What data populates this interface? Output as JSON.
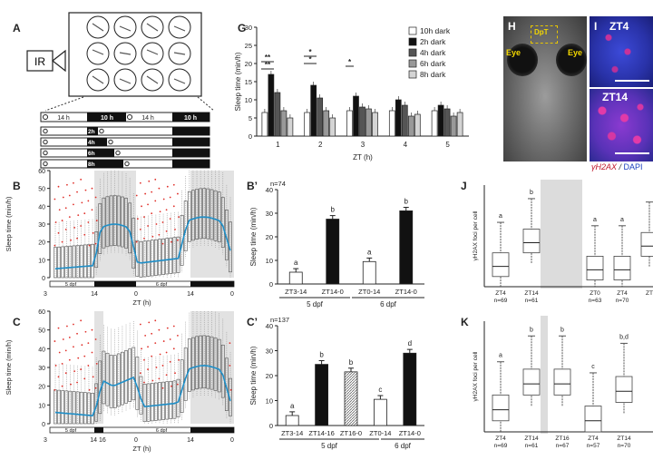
{
  "panel_letters": {
    "A": "A",
    "B": "B",
    "C": "C",
    "G": "G",
    "Bp": "B’",
    "Cp": "C’",
    "H": "H",
    "I": "I",
    "J": "J",
    "K": "K"
  },
  "A": {
    "ir_label": "IR",
    "schedule": {
      "top": [
        "14 h",
        "10 h",
        "14 h",
        "10 h"
      ],
      "rows": [
        "2h",
        "4h",
        "6h",
        "8h"
      ]
    }
  },
  "B": {
    "ylabel": "Sleep time (min/h)",
    "xlabel": "ZT (h)",
    "yticks": [
      "0",
      "10",
      "20",
      "30",
      "40",
      "50",
      "60"
    ],
    "xticks": [
      "3",
      "14",
      "0",
      "14",
      "0"
    ],
    "days": [
      "5 dpf",
      "6 dpf"
    ]
  },
  "C": {
    "ylabel": "Sleep time (min/h)",
    "xlabel": "ZT (h)",
    "yticks": [
      "0",
      "10",
      "20",
      "30",
      "40",
      "50",
      "60"
    ],
    "xticks": [
      "3",
      "14 16",
      "0",
      "14",
      "0"
    ],
    "days": [
      "5 dpf",
      "6 dpf"
    ]
  },
  "H": {
    "labels": [
      "Eye",
      "Eye",
      "DpT"
    ]
  },
  "I": {
    "labels": [
      "ZT4",
      "ZT14"
    ],
    "stain_red": "γH2AX",
    "stain_sep": " / ",
    "stain_blue": "DAPI"
  },
  "J": {
    "ylabel": "γH2AX foci per cell"
  },
  "K": {
    "ylabel": "γH2AX foci per cell"
  },
  "chart_data": [
    {
      "panel": "G",
      "type": "bar",
      "ylabel": "Sleep time (min/h)",
      "xlabel": "ZT (h)",
      "ylim": [
        0,
        30
      ],
      "yticks": [
        0,
        5,
        10,
        15,
        20,
        25,
        30
      ],
      "categories": [
        "1",
        "2",
        "3",
        "4",
        "5"
      ],
      "series": [
        {
          "name": "10h dark",
          "color": "#ffffff",
          "values": [
            6.5,
            6.5,
            7,
            7,
            7
          ]
        },
        {
          "name": "2h dark",
          "color": "#111111",
          "values": [
            17,
            14,
            11,
            10,
            8.5
          ]
        },
        {
          "name": "4h dark",
          "color": "#555555",
          "values": [
            12,
            10.5,
            8,
            8.5,
            7.5
          ]
        },
        {
          "name": "6h dark",
          "color": "#999999",
          "values": [
            7,
            7,
            7.5,
            5.5,
            5.5
          ]
        },
        {
          "name": "8h dark",
          "color": "#d4d4d4",
          "values": [
            5,
            5,
            6.5,
            6,
            6.5
          ]
        }
      ],
      "annotations": [
        "**",
        "*",
        "*",
        "**",
        "*"
      ]
    },
    {
      "panel": "B’",
      "type": "bar",
      "n_label": "n=74",
      "ylabel": "Sleep time (min/h)",
      "ylim": [
        0,
        40
      ],
      "yticks": [
        0,
        10,
        20,
        30,
        40
      ],
      "categories": [
        "ZT3-14",
        "ZT14-0",
        "ZT0-14",
        "ZT14-0"
      ],
      "values": [
        5,
        27.5,
        9.5,
        31
      ],
      "letters": [
        "a",
        "b",
        "a",
        "b"
      ],
      "fills": [
        "white",
        "black",
        "white",
        "black"
      ],
      "groups": [
        "5 dpf",
        "6 dpf"
      ]
    },
    {
      "panel": "C’",
      "type": "bar",
      "n_label": "n=137",
      "ylabel": "Sleep time (min/h)",
      "ylim": [
        0,
        40
      ],
      "yticks": [
        0,
        10,
        20,
        30,
        40
      ],
      "categories": [
        "ZT3-14",
        "ZT14-16",
        "ZT16-0",
        "ZT0-14",
        "ZT14-0"
      ],
      "values": [
        4,
        24.5,
        21.5,
        10.5,
        29
      ],
      "letters": [
        "a",
        "b",
        "b",
        "c",
        "d"
      ],
      "fills": [
        "white",
        "black",
        "hatch",
        "white",
        "black"
      ],
      "groups": [
        "5 dpf",
        "6 dpf"
      ]
    },
    {
      "panel": "J",
      "type": "box",
      "ylabel": "γH2AX foci per cell",
      "categories": [
        "ZT4",
        "ZT14",
        "ZT0",
        "ZT4",
        "ZT"
      ],
      "n": [
        "n=69",
        "n=61",
        "n=63",
        "n=70",
        ""
      ],
      "letters": [
        "a",
        "b",
        "a",
        "a",
        ""
      ],
      "medians": [
        6,
        13,
        5,
        5,
        12
      ]
    },
    {
      "panel": "K",
      "type": "box",
      "ylabel": "γH2AX foci per cell",
      "categories": [
        "ZT4",
        "ZT14",
        "ZT16",
        "ZT4",
        "ZT14"
      ],
      "n": [
        "n=69",
        "n=61",
        "n=67",
        "n=57",
        "n=70"
      ],
      "letters": [
        "a",
        "b",
        "b",
        "c",
        "b,d"
      ],
      "medians": [
        6,
        13,
        13,
        3,
        11
      ]
    }
  ]
}
